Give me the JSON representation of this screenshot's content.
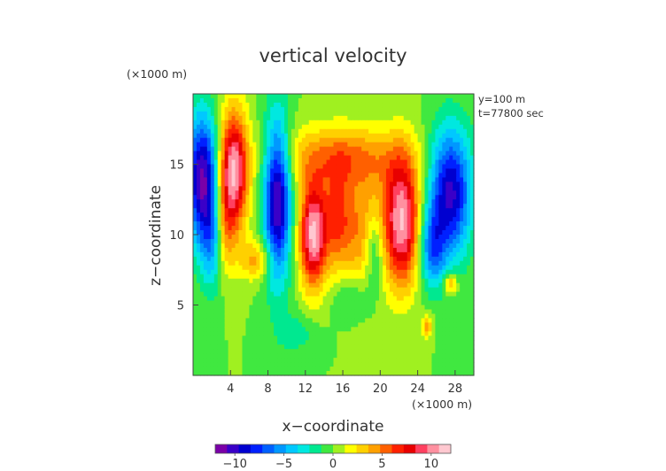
{
  "chart_data": {
    "type": "heatmap",
    "title": "vertical velocity",
    "xlabel": "x−coordinate",
    "ylabel": "z−coordinate",
    "x_unit": "(×1000 m)",
    "y_unit": "(×1000 m)",
    "annotations": [
      "y=100 m",
      "t=77800 sec"
    ],
    "xlim": [
      0,
      30
    ],
    "ylim": [
      0,
      20
    ],
    "x_ticks": [
      4,
      8,
      12,
      16,
      20,
      24,
      28
    ],
    "y_ticks": [
      5,
      10,
      15
    ],
    "colorbar": {
      "range": [
        -12,
        12
      ],
      "ticks": [
        -10,
        -5,
        0,
        5,
        10
      ],
      "colors": [
        "#7a00a8",
        "#3a00c8",
        "#0000d0",
        "#0020ff",
        "#0060ff",
        "#0098ff",
        "#00c8ff",
        "#00e8e0",
        "#00e890",
        "#40e840",
        "#a0f020",
        "#ffff00",
        "#ffd000",
        "#ffa000",
        "#ff6000",
        "#ff2000",
        "#e80000",
        "#ff4060",
        "#ff90a0",
        "#ffc8d0"
      ]
    },
    "blobs": [
      {
        "x": 1.0,
        "z": 14.0,
        "value": -11,
        "sx": 1.2,
        "sz": 3.2
      },
      {
        "x": 2.4,
        "z": 9.5,
        "value": -6,
        "sx": 1.0,
        "sz": 2.5
      },
      {
        "x": 4.3,
        "z": 14.5,
        "value": 11,
        "sx": 1.1,
        "sz": 3.0
      },
      {
        "x": 3.2,
        "z": 10.0,
        "value": 6,
        "sx": 0.8,
        "sz": 2.5
      },
      {
        "x": 6.8,
        "z": 8.2,
        "value": 4,
        "sx": 1.3,
        "sz": 1.0
      },
      {
        "x": 9.0,
        "z": 12.5,
        "value": -11,
        "sx": 1.0,
        "sz": 4.0
      },
      {
        "x": 12.8,
        "z": 10.0,
        "value": 11,
        "sx": 1.0,
        "sz": 2.6
      },
      {
        "x": 16.0,
        "z": 15.5,
        "value": 5,
        "sx": 4.5,
        "sz": 1.6
      },
      {
        "x": 15.5,
        "z": 11.0,
        "value": 6,
        "sx": 1.2,
        "sz": 2.6
      },
      {
        "x": 18.5,
        "z": 10.0,
        "value": 5,
        "sx": 1.3,
        "sz": 2.8
      },
      {
        "x": 17.0,
        "z": 5.5,
        "value": -2,
        "sx": 1.5,
        "sz": 1.0
      },
      {
        "x": 19.3,
        "z": 9.0,
        "value": -5,
        "sx": 0.8,
        "sz": 2.0
      },
      {
        "x": 22.3,
        "z": 11.0,
        "value": 11,
        "sx": 1.4,
        "sz": 3.2
      },
      {
        "x": 27.5,
        "z": 13.0,
        "value": -10,
        "sx": 1.6,
        "sz": 3.2
      },
      {
        "x": 25.5,
        "z": 9.0,
        "value": -6,
        "sx": 1.0,
        "sz": 2.0
      },
      {
        "x": 27.5,
        "z": 6.5,
        "value": 5,
        "sx": 0.5,
        "sz": 0.5
      },
      {
        "x": 25.0,
        "z": 3.5,
        "value": 4,
        "sx": 0.4,
        "sz": 0.6
      },
      {
        "x": 11.0,
        "z": 3.0,
        "value": -2,
        "sx": 1.5,
        "sz": 1.0
      }
    ]
  }
}
